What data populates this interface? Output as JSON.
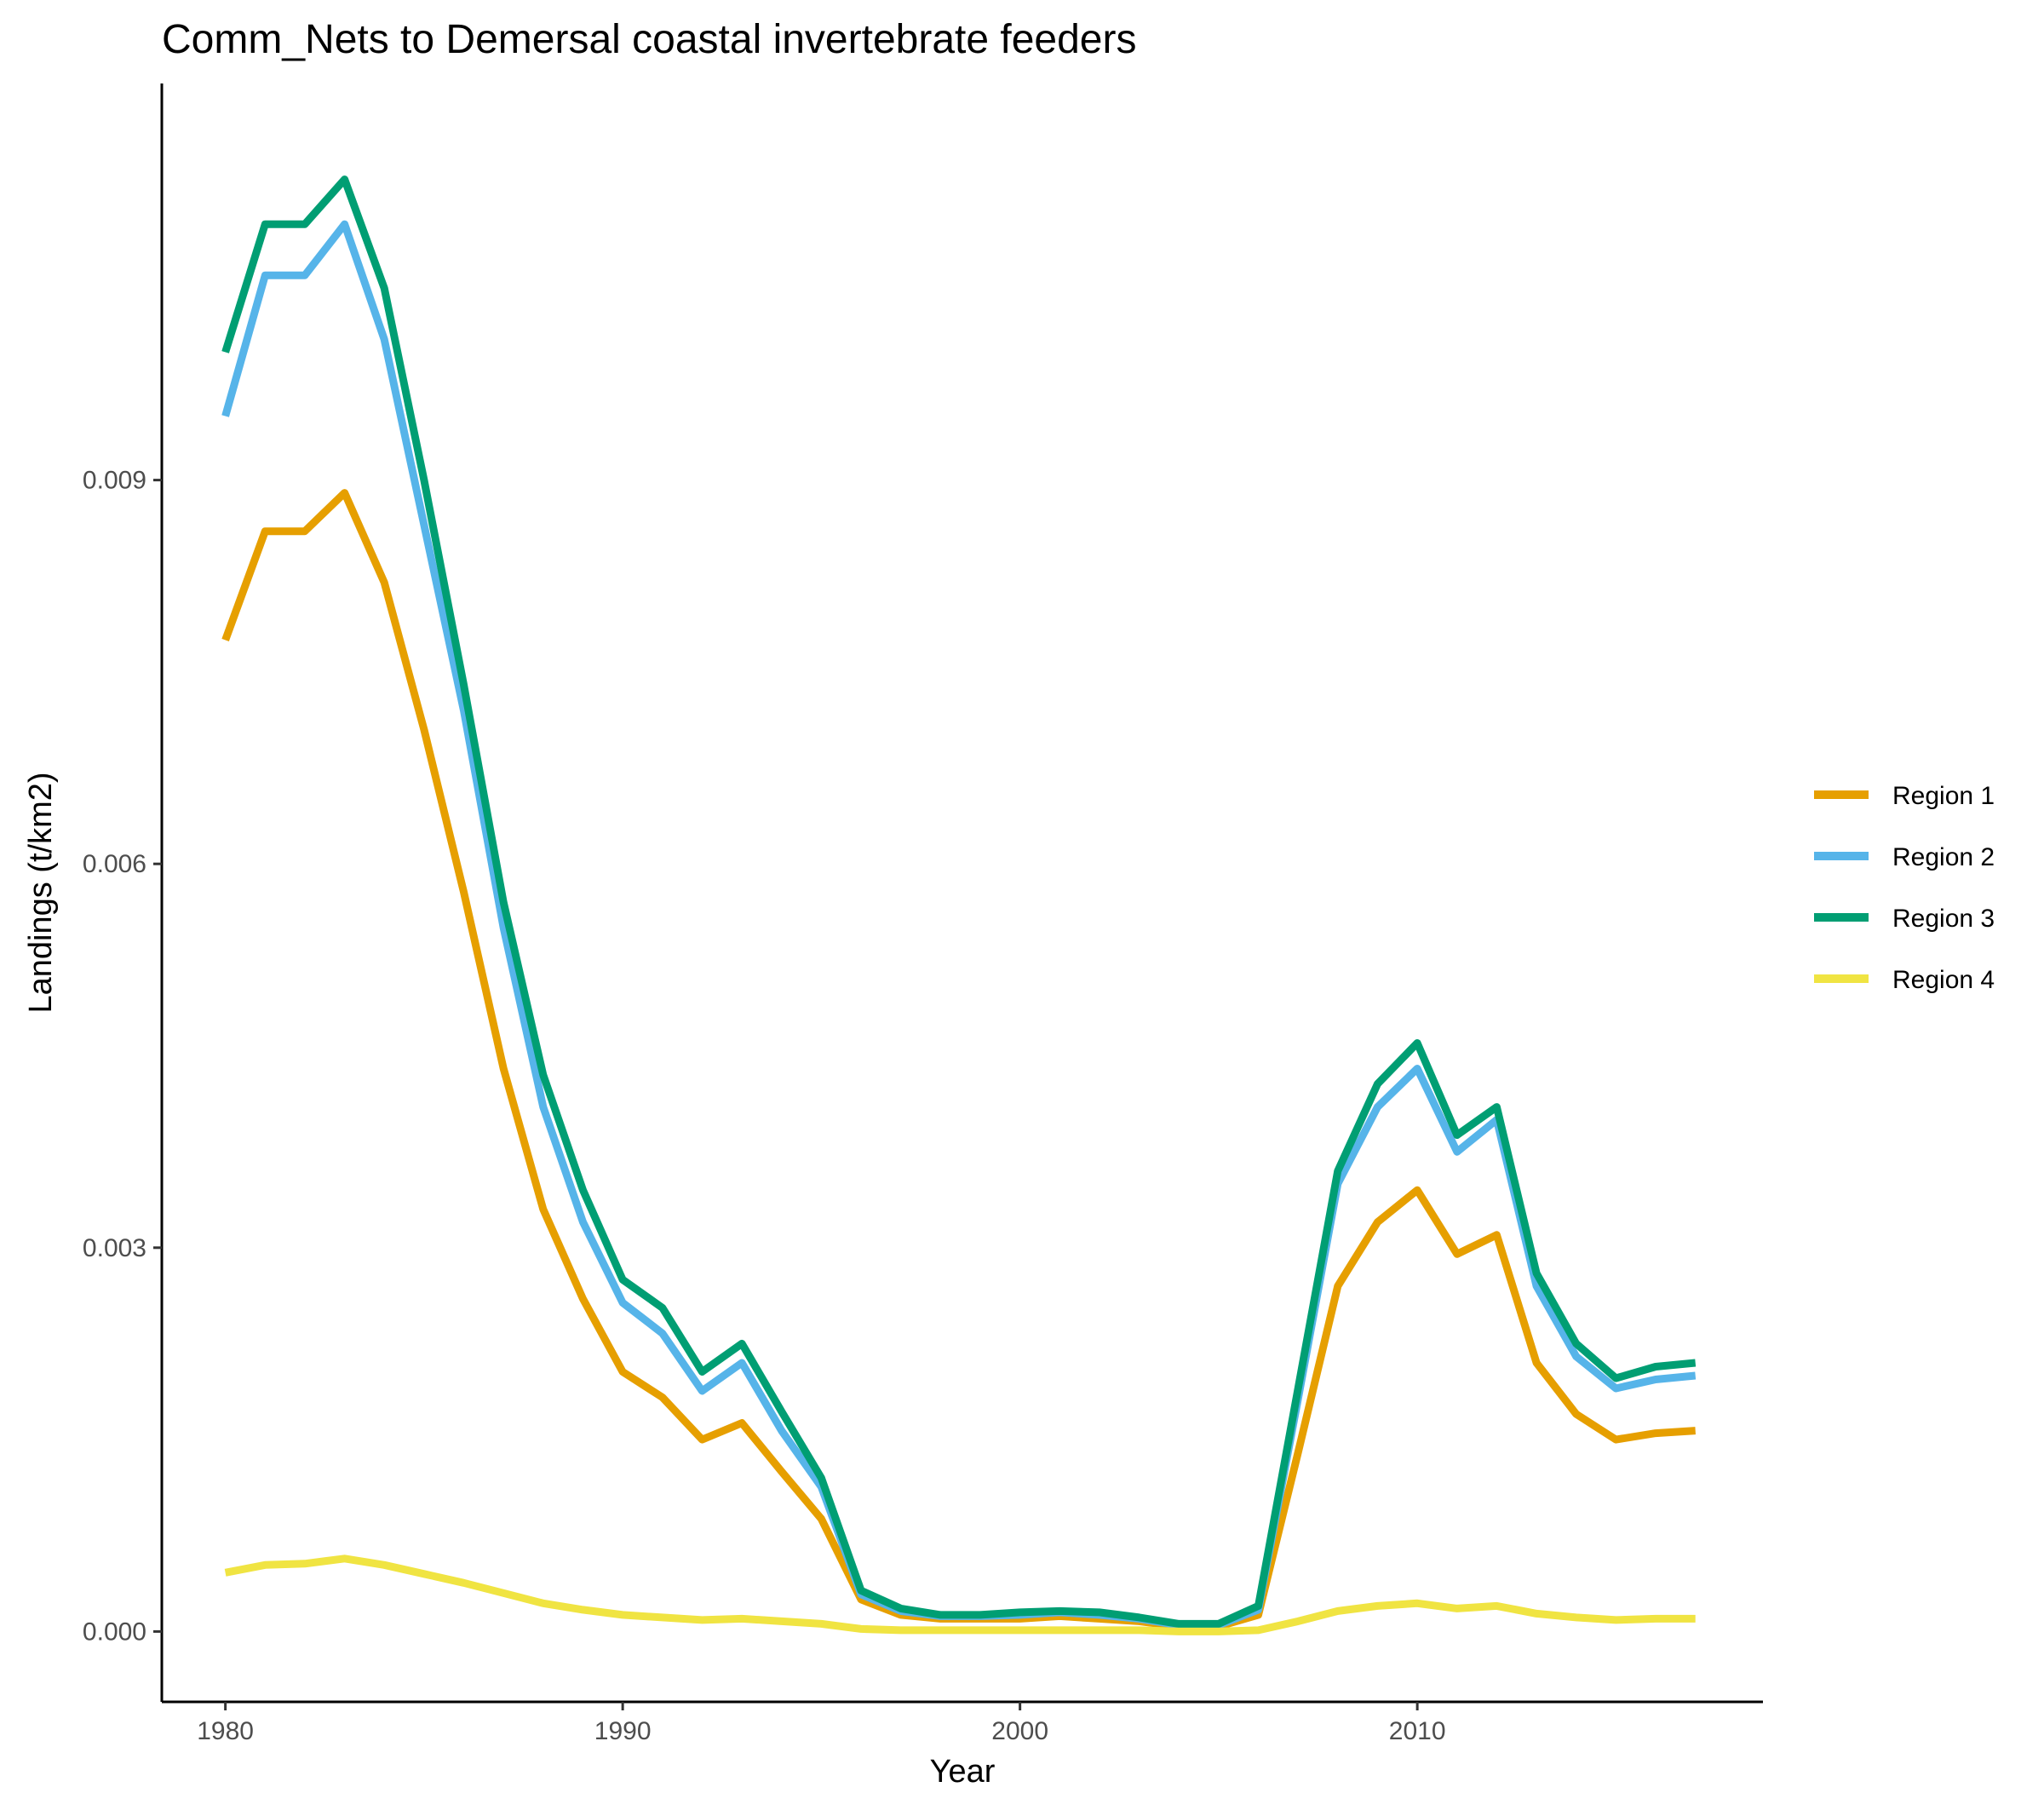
{
  "chart_data": {
    "type": "line",
    "title": "Comm_Nets to Demersal coastal invertebrate feeders",
    "xlabel": "Year",
    "ylabel": "Landings (t/km2)",
    "xlim": [
      1978.4,
      2018.7
    ],
    "ylim": [
      -0.00055,
      0.0121
    ],
    "x_ticks": [
      1980,
      1990,
      2000,
      2010
    ],
    "x_tick_labels": [
      "1980",
      "1990",
      "2000",
      "2010"
    ],
    "y_ticks": [
      0,
      0.003,
      0.006,
      0.009
    ],
    "y_tick_labels": [
      "0.000",
      "0.003",
      "0.006",
      "0.009"
    ],
    "grid": false,
    "legend_position": "right",
    "x": [
      1980,
      1981,
      1982,
      1983,
      1984,
      1985,
      1986,
      1987,
      1988,
      1989,
      1990,
      1991,
      1992,
      1993,
      1994,
      1995,
      1996,
      1997,
      1998,
      1999,
      2000,
      2001,
      2002,
      2003,
      2004,
      2005,
      2006,
      2007,
      2008,
      2009,
      2010,
      2011,
      2012,
      2013,
      2014,
      2015,
      2016,
      2017
    ],
    "series": [
      {
        "name": "Region 1",
        "color": "#E69F00",
        "values": [
          0.00775,
          0.0086,
          0.0086,
          0.0089,
          0.0082,
          0.00705,
          0.00578,
          0.0044,
          0.0033,
          0.0026,
          0.00203,
          0.00183,
          0.0015,
          0.00163,
          0.00125,
          0.00088,
          0.00025,
          0.00013,
          0.0001,
          0.0001,
          0.0001,
          0.00012,
          0.0001,
          8e-05,
          4e-05,
          4e-05,
          0.00013,
          0.0014,
          0.0027,
          0.0032,
          0.00345,
          0.00295,
          0.0031,
          0.0021,
          0.0017,
          0.0015,
          0.00155,
          0.00157
        ]
      },
      {
        "name": "Region 2",
        "color": "#56B4E9",
        "values": [
          0.0095,
          0.0106,
          0.0106,
          0.011,
          0.0101,
          0.00865,
          0.0072,
          0.0055,
          0.0041,
          0.0032,
          0.00257,
          0.00233,
          0.00188,
          0.0021,
          0.00157,
          0.00113,
          0.00029,
          0.00016,
          0.00012,
          0.00012,
          0.00013,
          0.00015,
          0.00013,
          0.0001,
          5e-05,
          5e-05,
          0.00017,
          0.00182,
          0.0035,
          0.0041,
          0.0044,
          0.00375,
          0.004,
          0.0027,
          0.00215,
          0.0019,
          0.00197,
          0.002
        ]
      },
      {
        "name": "Region 3",
        "color": "#009E73",
        "values": [
          0.01,
          0.011,
          0.011,
          0.01135,
          0.0105,
          0.009,
          0.0074,
          0.0057,
          0.00435,
          0.00345,
          0.00275,
          0.00253,
          0.00203,
          0.00225,
          0.00172,
          0.0012,
          0.00032,
          0.00018,
          0.00013,
          0.00013,
          0.00015,
          0.00016,
          0.00015,
          0.00011,
          6e-05,
          6e-05,
          0.0002,
          0.0019,
          0.0036,
          0.00428,
          0.0046,
          0.00388,
          0.0041,
          0.0028,
          0.00225,
          0.00198,
          0.00207,
          0.0021
        ]
      },
      {
        "name": "Region 4",
        "color": "#F0E442",
        "values": [
          0.00046,
          0.00052,
          0.00053,
          0.00057,
          0.00052,
          0.00045,
          0.00038,
          0.0003,
          0.00022,
          0.00017,
          0.00013,
          0.00011,
          9e-05,
          0.0001,
          8e-05,
          6e-05,
          2e-05,
          1e-05,
          1e-05,
          1e-05,
          1e-05,
          1e-05,
          1e-05,
          1e-05,
          0.0,
          0.0,
          1e-05,
          8e-05,
          0.00016,
          0.0002,
          0.00022,
          0.00018,
          0.0002,
          0.00014,
          0.00011,
          9e-05,
          0.0001,
          0.0001
        ]
      }
    ]
  }
}
